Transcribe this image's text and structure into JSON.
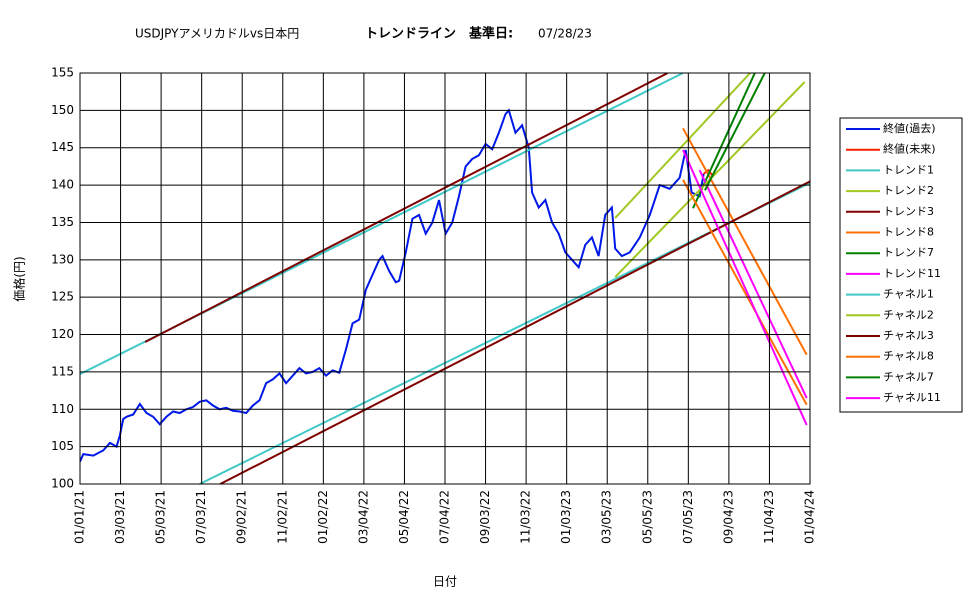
{
  "chart_data": {
    "type": "line",
    "title": "USDJPYアメリカドルvs日本円",
    "subtitle": "トレンドライン　基準日:",
    "date": "07/28/23",
    "xlabel": "日付",
    "ylabel": "価格(円)",
    "xlim": [
      0,
      1098
    ],
    "ylim": [
      100,
      155
    ],
    "yticks": [
      100,
      105,
      110,
      115,
      120,
      125,
      130,
      135,
      140,
      145,
      150,
      155
    ],
    "xticks": [
      {
        "value": 0,
        "label": "01/01/21"
      },
      {
        "value": 61,
        "label": "03/03/21"
      },
      {
        "value": 122,
        "label": "05/03/21"
      },
      {
        "value": 183,
        "label": "07/03/21"
      },
      {
        "value": 244,
        "label": "09/02/21"
      },
      {
        "value": 305,
        "label": "11/02/21"
      },
      {
        "value": 366,
        "label": "01/02/22"
      },
      {
        "value": 427,
        "label": "03/04/22"
      },
      {
        "value": 488,
        "label": "05/04/22"
      },
      {
        "value": 549,
        "label": "07/04/22"
      },
      {
        "value": 610,
        "label": "09/03/22"
      },
      {
        "value": 671,
        "label": "11/03/22"
      },
      {
        "value": 732,
        "label": "01/03/23"
      },
      {
        "value": 793,
        "label": "03/05/23"
      },
      {
        "value": 854,
        "label": "05/05/23"
      },
      {
        "value": 915,
        "label": "07/05/23"
      },
      {
        "value": 976,
        "label": "09/04/23"
      },
      {
        "value": 1037,
        "label": "11/04/23"
      },
      {
        "value": 1098,
        "label": "01/04/24"
      }
    ],
    "grid": true,
    "series": [
      {
        "name": "終値(過去)",
        "color": "#0018e8",
        "x": [
          0,
          5,
          20,
          35,
          45,
          55,
          60,
          65,
          70,
          80,
          90,
          100,
          110,
          120,
          130,
          140,
          150,
          160,
          170,
          180,
          190,
          200,
          210,
          220,
          230,
          240,
          250,
          260,
          270,
          280,
          290,
          300,
          310,
          320,
          330,
          340,
          350,
          360,
          370,
          380,
          390,
          400,
          410,
          420,
          430,
          440,
          450,
          455,
          465,
          475,
          480,
          490,
          500,
          510,
          520,
          530,
          540,
          550,
          560,
          570,
          580,
          590,
          600,
          610,
          620,
          630,
          640,
          645,
          655,
          665,
          675,
          680,
          690,
          700,
          710,
          720,
          730,
          740,
          750,
          760,
          770,
          780,
          790,
          800,
          805,
          815,
          827,
          842,
          857,
          872,
          887,
          902,
          911,
          920,
          932,
          938
        ],
        "values": [
          103,
          104,
          103.8,
          104.5,
          105.5,
          105,
          106.5,
          108.7,
          109,
          109.3,
          110.7,
          109.5,
          109,
          108,
          109,
          109.7,
          109.5,
          110,
          110.3,
          111,
          111.2,
          110.5,
          110,
          110.2,
          109.8,
          109.7,
          109.5,
          110.5,
          111.2,
          113.5,
          114,
          114.8,
          113.5,
          114.5,
          115.5,
          114.8,
          115,
          115.5,
          114.5,
          115.2,
          114.9,
          118,
          121.5,
          122,
          126,
          128,
          130,
          130.5,
          128.5,
          127,
          127.2,
          131,
          135.5,
          136,
          133.5,
          135,
          138,
          133.5,
          135,
          138.5,
          142.5,
          143.5,
          144,
          145.5,
          144.8,
          147,
          149.5,
          150,
          147,
          148,
          145,
          139,
          137,
          138,
          135,
          133.5,
          131,
          130,
          129,
          132,
          133,
          130.5,
          136,
          137,
          131.5,
          130.5,
          131,
          133,
          136,
          140,
          139.5,
          141,
          144.7,
          139,
          138.5,
          141.5
        ]
      },
      {
        "name": "終値(未来)",
        "color": "#ff2000",
        "x": [
          938,
          945,
          952
        ],
        "values": [
          141.5,
          142,
          141.2
        ]
      },
      {
        "name": "トレンド1",
        "color": "#40c8c8",
        "x": [
          0,
          907
        ],
        "values": [
          114.7,
          155
        ]
      },
      {
        "name": "トレンド2",
        "color": "#a0c820",
        "x": [
          805,
          1008
        ],
        "values": [
          135.6,
          155
        ]
      },
      {
        "name": "トレンド3",
        "color": "#800000",
        "x": [
          98,
          884
        ],
        "values": [
          119,
          155
        ]
      },
      {
        "name": "トレンド8",
        "color": "#ff7000",
        "x": [
          907,
          1093
        ],
        "values": [
          147.6,
          117.3
        ]
      },
      {
        "name": "トレンド7",
        "color": "#008000",
        "x": [
          922,
          1015
        ],
        "values": [
          136.9,
          155
        ]
      },
      {
        "name": "トレンド11",
        "color": "#ff00ff",
        "x": [
          932,
          1093
        ],
        "values": [
          142,
          111.5
        ]
      },
      {
        "name": "チャネル1",
        "color": "#40c8c8",
        "x": [
          180,
          1098
        ],
        "values": [
          100,
          140.3
        ]
      },
      {
        "name": "チャネル2",
        "color": "#a0c820",
        "x": [
          805,
          1090
        ],
        "values": [
          127.7,
          153.8
        ]
      },
      {
        "name": "チャネル3",
        "color": "#800000",
        "x": [
          211,
          1098
        ],
        "values": [
          100,
          140.5
        ]
      },
      {
        "name": "チャネル8",
        "color": "#ff7000",
        "x": [
          907,
          1093
        ],
        "values": [
          140.7,
          110.6
        ]
      },
      {
        "name": "チャネル7",
        "color": "#008000",
        "x": [
          940,
          1030
        ],
        "values": [
          139.3,
          155
        ]
      },
      {
        "name": "チャネル11",
        "color": "#ff00ff",
        "x": [
          907,
          1093
        ],
        "values": [
          144.7,
          107.9
        ]
      }
    ]
  }
}
